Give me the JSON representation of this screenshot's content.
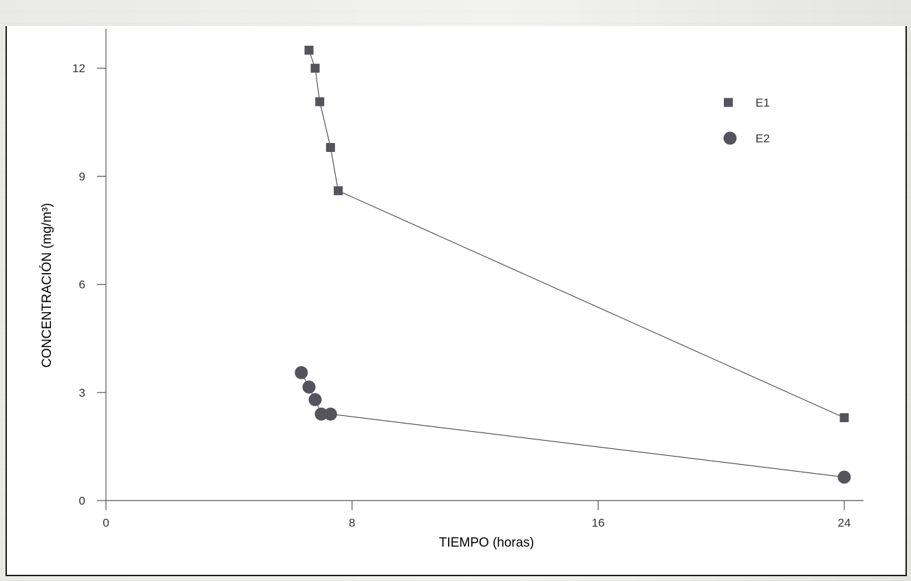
{
  "colors": {
    "marker": "#55535d",
    "line": "#444444",
    "axis": "#555555",
    "text": "#333333",
    "background": "#ffffff"
  },
  "chart_data": {
    "type": "line",
    "title": "",
    "xlabel": "TIEMPO (horas)",
    "ylabel": "CONCENTRACIÓN (mg/m³)",
    "xlim": [
      0,
      24
    ],
    "ylim": [
      0,
      12.6
    ],
    "x_ticks": [
      0,
      8,
      16,
      24
    ],
    "y_ticks": [
      0,
      3,
      6,
      9,
      12
    ],
    "grid": false,
    "legend_position": "top-right",
    "series": [
      {
        "name": "E1",
        "marker": "square",
        "x": [
          6.6,
          6.8,
          6.95,
          7.3,
          7.55,
          24.0
        ],
        "y": [
          12.5,
          12.0,
          11.07,
          9.8,
          8.6,
          2.3
        ]
      },
      {
        "name": "E2",
        "marker": "circle",
        "x": [
          6.35,
          6.6,
          6.8,
          7.0,
          7.3,
          24.0
        ],
        "y": [
          3.55,
          3.15,
          2.8,
          2.4,
          2.4,
          0.65
        ]
      }
    ]
  }
}
